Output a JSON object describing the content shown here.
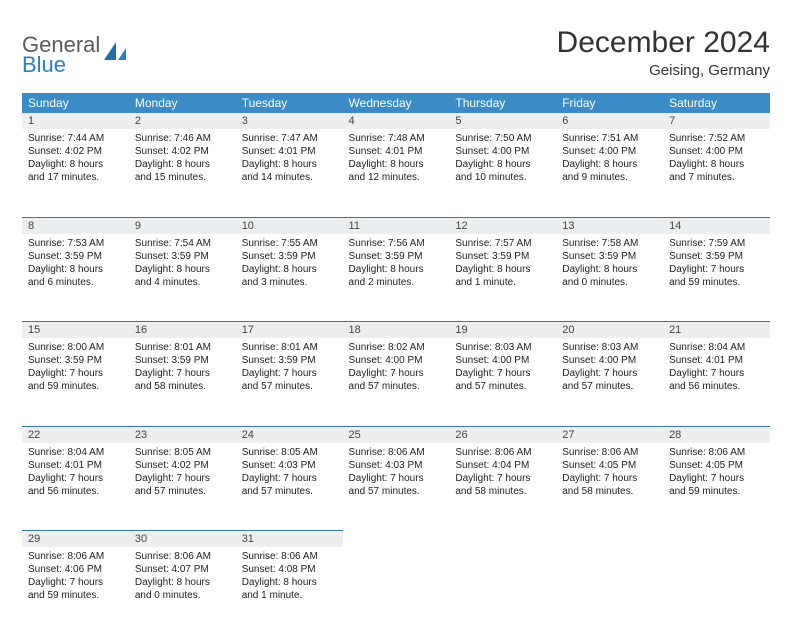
{
  "logo": {
    "word1": "General",
    "word2": "Blue"
  },
  "title": "December 2024",
  "subtitle": "Geising, Germany",
  "colors": {
    "header_bg": "#3b8bc6",
    "header_text": "#ffffff",
    "daynum_bg": "#eceeef",
    "row_divider": "#3b7aa5",
    "logo_gray": "#5b5b5b",
    "logo_blue": "#2a7fbf",
    "text": "#222222"
  },
  "day_headers": [
    "Sunday",
    "Monday",
    "Tuesday",
    "Wednesday",
    "Thursday",
    "Friday",
    "Saturday"
  ],
  "weeks": [
    [
      {
        "n": "1",
        "sr": "Sunrise: 7:44 AM",
        "ss": "Sunset: 4:02 PM",
        "d1": "Daylight: 8 hours",
        "d2": "and 17 minutes."
      },
      {
        "n": "2",
        "sr": "Sunrise: 7:46 AM",
        "ss": "Sunset: 4:02 PM",
        "d1": "Daylight: 8 hours",
        "d2": "and 15 minutes."
      },
      {
        "n": "3",
        "sr": "Sunrise: 7:47 AM",
        "ss": "Sunset: 4:01 PM",
        "d1": "Daylight: 8 hours",
        "d2": "and 14 minutes."
      },
      {
        "n": "4",
        "sr": "Sunrise: 7:48 AM",
        "ss": "Sunset: 4:01 PM",
        "d1": "Daylight: 8 hours",
        "d2": "and 12 minutes."
      },
      {
        "n": "5",
        "sr": "Sunrise: 7:50 AM",
        "ss": "Sunset: 4:00 PM",
        "d1": "Daylight: 8 hours",
        "d2": "and 10 minutes."
      },
      {
        "n": "6",
        "sr": "Sunrise: 7:51 AM",
        "ss": "Sunset: 4:00 PM",
        "d1": "Daylight: 8 hours",
        "d2": "and 9 minutes."
      },
      {
        "n": "7",
        "sr": "Sunrise: 7:52 AM",
        "ss": "Sunset: 4:00 PM",
        "d1": "Daylight: 8 hours",
        "d2": "and 7 minutes."
      }
    ],
    [
      {
        "n": "8",
        "sr": "Sunrise: 7:53 AM",
        "ss": "Sunset: 3:59 PM",
        "d1": "Daylight: 8 hours",
        "d2": "and 6 minutes."
      },
      {
        "n": "9",
        "sr": "Sunrise: 7:54 AM",
        "ss": "Sunset: 3:59 PM",
        "d1": "Daylight: 8 hours",
        "d2": "and 4 minutes."
      },
      {
        "n": "10",
        "sr": "Sunrise: 7:55 AM",
        "ss": "Sunset: 3:59 PM",
        "d1": "Daylight: 8 hours",
        "d2": "and 3 minutes."
      },
      {
        "n": "11",
        "sr": "Sunrise: 7:56 AM",
        "ss": "Sunset: 3:59 PM",
        "d1": "Daylight: 8 hours",
        "d2": "and 2 minutes."
      },
      {
        "n": "12",
        "sr": "Sunrise: 7:57 AM",
        "ss": "Sunset: 3:59 PM",
        "d1": "Daylight: 8 hours",
        "d2": "and 1 minute."
      },
      {
        "n": "13",
        "sr": "Sunrise: 7:58 AM",
        "ss": "Sunset: 3:59 PM",
        "d1": "Daylight: 8 hours",
        "d2": "and 0 minutes."
      },
      {
        "n": "14",
        "sr": "Sunrise: 7:59 AM",
        "ss": "Sunset: 3:59 PM",
        "d1": "Daylight: 7 hours",
        "d2": "and 59 minutes."
      }
    ],
    [
      {
        "n": "15",
        "sr": "Sunrise: 8:00 AM",
        "ss": "Sunset: 3:59 PM",
        "d1": "Daylight: 7 hours",
        "d2": "and 59 minutes."
      },
      {
        "n": "16",
        "sr": "Sunrise: 8:01 AM",
        "ss": "Sunset: 3:59 PM",
        "d1": "Daylight: 7 hours",
        "d2": "and 58 minutes."
      },
      {
        "n": "17",
        "sr": "Sunrise: 8:01 AM",
        "ss": "Sunset: 3:59 PM",
        "d1": "Daylight: 7 hours",
        "d2": "and 57 minutes."
      },
      {
        "n": "18",
        "sr": "Sunrise: 8:02 AM",
        "ss": "Sunset: 4:00 PM",
        "d1": "Daylight: 7 hours",
        "d2": "and 57 minutes."
      },
      {
        "n": "19",
        "sr": "Sunrise: 8:03 AM",
        "ss": "Sunset: 4:00 PM",
        "d1": "Daylight: 7 hours",
        "d2": "and 57 minutes."
      },
      {
        "n": "20",
        "sr": "Sunrise: 8:03 AM",
        "ss": "Sunset: 4:00 PM",
        "d1": "Daylight: 7 hours",
        "d2": "and 57 minutes."
      },
      {
        "n": "21",
        "sr": "Sunrise: 8:04 AM",
        "ss": "Sunset: 4:01 PM",
        "d1": "Daylight: 7 hours",
        "d2": "and 56 minutes."
      }
    ],
    [
      {
        "n": "22",
        "sr": "Sunrise: 8:04 AM",
        "ss": "Sunset: 4:01 PM",
        "d1": "Daylight: 7 hours",
        "d2": "and 56 minutes."
      },
      {
        "n": "23",
        "sr": "Sunrise: 8:05 AM",
        "ss": "Sunset: 4:02 PM",
        "d1": "Daylight: 7 hours",
        "d2": "and 57 minutes."
      },
      {
        "n": "24",
        "sr": "Sunrise: 8:05 AM",
        "ss": "Sunset: 4:03 PM",
        "d1": "Daylight: 7 hours",
        "d2": "and 57 minutes."
      },
      {
        "n": "25",
        "sr": "Sunrise: 8:06 AM",
        "ss": "Sunset: 4:03 PM",
        "d1": "Daylight: 7 hours",
        "d2": "and 57 minutes."
      },
      {
        "n": "26",
        "sr": "Sunrise: 8:06 AM",
        "ss": "Sunset: 4:04 PM",
        "d1": "Daylight: 7 hours",
        "d2": "and 58 minutes."
      },
      {
        "n": "27",
        "sr": "Sunrise: 8:06 AM",
        "ss": "Sunset: 4:05 PM",
        "d1": "Daylight: 7 hours",
        "d2": "and 58 minutes."
      },
      {
        "n": "28",
        "sr": "Sunrise: 8:06 AM",
        "ss": "Sunset: 4:05 PM",
        "d1": "Daylight: 7 hours",
        "d2": "and 59 minutes."
      }
    ],
    [
      {
        "n": "29",
        "sr": "Sunrise: 8:06 AM",
        "ss": "Sunset: 4:06 PM",
        "d1": "Daylight: 7 hours",
        "d2": "and 59 minutes."
      },
      {
        "n": "30",
        "sr": "Sunrise: 8:06 AM",
        "ss": "Sunset: 4:07 PM",
        "d1": "Daylight: 8 hours",
        "d2": "and 0 minutes."
      },
      {
        "n": "31",
        "sr": "Sunrise: 8:06 AM",
        "ss": "Sunset: 4:08 PM",
        "d1": "Daylight: 8 hours",
        "d2": "and 1 minute."
      },
      null,
      null,
      null,
      null
    ]
  ]
}
